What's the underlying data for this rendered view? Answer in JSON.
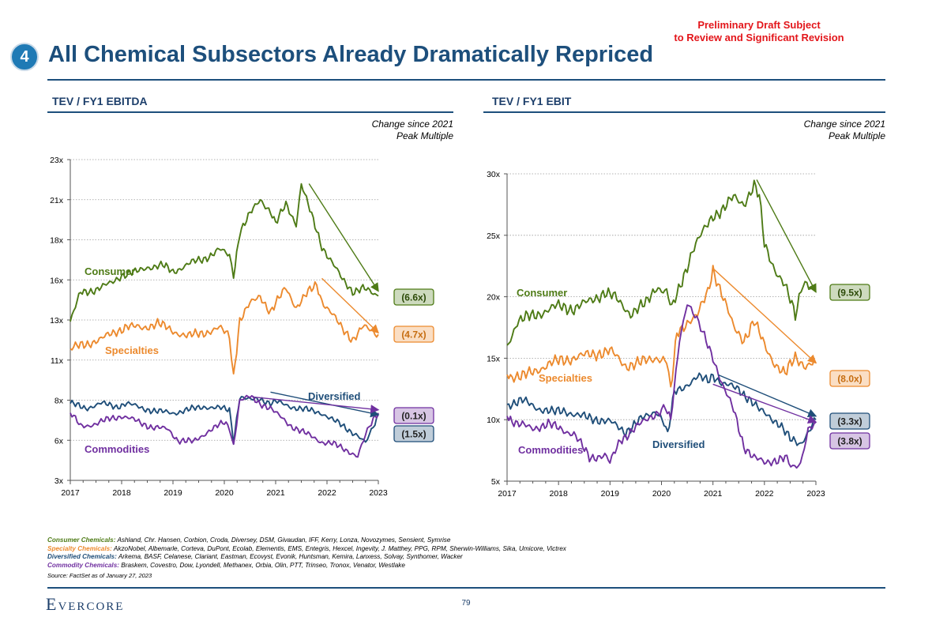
{
  "draft_notice": [
    "Preliminary Draft Subject",
    "to Review and Significant Revision"
  ],
  "section_number": "4",
  "title": "All Chemical Subsectors Already Dramatically Repriced",
  "colors": {
    "consumer": "#4e7b16",
    "specialties": "#ec8a2e",
    "diversified": "#1f4e79",
    "commodities": "#7030a0",
    "title": "#1d4f7c",
    "draft": "#e3161b"
  },
  "chart_data": [
    {
      "type": "line",
      "title": "TEV / FY1 EBITDA",
      "note": [
        "Change since 2021",
        "Peak Multiple"
      ],
      "x_ticks": [
        "2017",
        "2018",
        "2019",
        "2020",
        "2021",
        "2022",
        "2023"
      ],
      "y_ticks": [
        "3x",
        "6x",
        "8x",
        "11x",
        "13x",
        "16x",
        "18x",
        "21x",
        "23x"
      ],
      "ylim": [
        3,
        23
      ],
      "series": [
        {
          "name": "Consumer",
          "key": "consumer",
          "label": "Consumer",
          "change": "(6.6x)",
          "x": [
            2017.0,
            2017.2,
            2017.5,
            2017.8,
            2018.0,
            2018.3,
            2018.5,
            2018.8,
            2019.0,
            2019.3,
            2019.6,
            2019.9,
            2020.1,
            2020.18,
            2020.3,
            2020.5,
            2020.7,
            2020.9,
            2021.0,
            2021.2,
            2021.4,
            2021.5,
            2021.7,
            2021.9,
            2022.1,
            2022.3,
            2022.5,
            2022.7,
            2022.9,
            2023.0
          ],
          "y": [
            12.9,
            14.7,
            14.9,
            15.3,
            15.8,
            16.0,
            16.3,
            16.4,
            16.0,
            16.5,
            16.8,
            17.4,
            17.0,
            15.8,
            18.5,
            19.6,
            20.5,
            19.8,
            19.0,
            20.2,
            19.0,
            21.5,
            19.5,
            17.6,
            16.6,
            15.5,
            14.8,
            15.0,
            14.6,
            14.5
          ]
        },
        {
          "name": "Specialties",
          "key": "specialties",
          "label": "Specialties",
          "change": "(4.7x)",
          "x": [
            2017.0,
            2017.3,
            2017.6,
            2017.9,
            2018.1,
            2018.4,
            2018.7,
            2019.0,
            2019.3,
            2019.6,
            2019.9,
            2020.1,
            2020.18,
            2020.3,
            2020.5,
            2020.7,
            2020.9,
            2021.0,
            2021.2,
            2021.4,
            2021.6,
            2021.8,
            2021.9,
            2022.1,
            2022.3,
            2022.5,
            2022.7,
            2022.9,
            2023.0
          ],
          "y": [
            11.2,
            11.5,
            11.8,
            12.3,
            12.6,
            12.5,
            12.8,
            12.3,
            12.0,
            12.2,
            12.5,
            12.0,
            9.5,
            13.0,
            14.0,
            14.5,
            13.5,
            14.0,
            15.0,
            13.8,
            14.6,
            15.2,
            14.2,
            13.4,
            12.4,
            11.8,
            12.6,
            12.2,
            12.1
          ]
        },
        {
          "name": "Diversified",
          "key": "diversified",
          "label": "Diversified",
          "change": "(1.5x)",
          "x": [
            2017.0,
            2017.3,
            2017.6,
            2017.9,
            2018.1,
            2018.4,
            2018.7,
            2019.0,
            2019.3,
            2019.6,
            2019.9,
            2020.1,
            2020.18,
            2020.3,
            2020.5,
            2020.7,
            2020.9,
            2021.0,
            2021.3,
            2021.6,
            2021.9,
            2022.1,
            2022.3,
            2022.5,
            2022.6,
            2022.75,
            2022.9,
            2023.0
          ],
          "y": [
            7.8,
            7.5,
            7.8,
            7.6,
            7.8,
            7.5,
            7.3,
            7.2,
            7.4,
            7.6,
            7.5,
            7.4,
            5.5,
            8.2,
            8.0,
            8.1,
            7.8,
            7.9,
            7.6,
            7.4,
            7.2,
            6.8,
            6.4,
            6.0,
            5.8,
            5.3,
            6.3,
            7.1
          ]
        },
        {
          "name": "Commodities",
          "key": "commodities",
          "label": "Commodities",
          "change": "(0.1x)",
          "x": [
            2017.0,
            2017.2,
            2017.5,
            2017.8,
            2018.0,
            2018.3,
            2018.6,
            2018.9,
            2019.1,
            2019.4,
            2019.7,
            2020.0,
            2020.1,
            2020.18,
            2020.3,
            2020.5,
            2020.7,
            2020.9,
            2021.0,
            2021.3,
            2021.6,
            2021.9,
            2022.1,
            2022.3,
            2022.5,
            2022.6,
            2022.75,
            2022.9,
            2023.0
          ],
          "y": [
            7.2,
            6.4,
            6.5,
            6.9,
            7.0,
            6.7,
            6.3,
            6.2,
            5.5,
            5.4,
            6.1,
            6.6,
            6.3,
            5.2,
            8.0,
            8.2,
            7.8,
            7.5,
            7.2,
            6.4,
            5.9,
            5.4,
            5.3,
            5.0,
            4.7,
            4.5,
            5.8,
            6.8,
            7.2
          ]
        }
      ]
    },
    {
      "type": "line",
      "title": "TEV / FY1 EBIT",
      "note": [
        "Change since 2021",
        "Peak Multiple"
      ],
      "x_ticks": [
        "2017",
        "2018",
        "2019",
        "2020",
        "2021",
        "2022",
        "2023"
      ],
      "y_ticks": [
        "5x",
        "10x",
        "15x",
        "20x",
        "25x",
        "30x"
      ],
      "ylim": [
        5,
        31
      ],
      "series": [
        {
          "name": "Consumer",
          "key": "consumer",
          "label": "Consumer",
          "change": "(9.5x)",
          "x": [
            2017.0,
            2017.2,
            2017.5,
            2017.8,
            2018.0,
            2018.3,
            2018.6,
            2018.9,
            2019.1,
            2019.4,
            2019.7,
            2019.9,
            2020.1,
            2020.2,
            2020.4,
            2020.6,
            2020.8,
            2021.0,
            2021.2,
            2021.4,
            2021.6,
            2021.8,
            2021.9,
            2022.0,
            2022.2,
            2022.4,
            2022.6,
            2022.75,
            2022.9,
            2023.0
          ],
          "y": [
            16.5,
            18.5,
            19.0,
            19.5,
            19.8,
            19.6,
            20.2,
            21.0,
            20.5,
            19.2,
            20.0,
            21.5,
            21.0,
            19.5,
            22.0,
            24.5,
            26.0,
            27.5,
            28.0,
            29.0,
            28.5,
            30.0,
            29.0,
            25.0,
            23.0,
            21.5,
            19.0,
            22.0,
            21.5,
            21.0
          ]
        },
        {
          "name": "Specialties",
          "key": "specialties",
          "label": "Specialties",
          "change": "(8.0x)",
          "x": [
            2017.0,
            2017.3,
            2017.6,
            2017.9,
            2018.1,
            2018.4,
            2018.7,
            2019.0,
            2019.3,
            2019.6,
            2019.9,
            2020.1,
            2020.18,
            2020.3,
            2020.5,
            2020.7,
            2020.9,
            2021.0,
            2021.2,
            2021.4,
            2021.6,
            2021.8,
            2022.0,
            2022.2,
            2022.4,
            2022.6,
            2022.8,
            2023.0
          ],
          "y": [
            14.0,
            13.8,
            14.5,
            15.0,
            15.3,
            15.5,
            15.8,
            16.0,
            14.8,
            15.0,
            15.5,
            15.2,
            12.5,
            17.5,
            18.5,
            19.0,
            21.0,
            23.0,
            20.5,
            18.0,
            17.0,
            18.5,
            16.5,
            15.0,
            14.0,
            15.5,
            14.8,
            15.0
          ]
        },
        {
          "name": "Diversified",
          "key": "diversified",
          "label": "Diversified",
          "change": "(3.3x)",
          "x": [
            2017.0,
            2017.3,
            2017.6,
            2017.9,
            2018.1,
            2018.4,
            2018.7,
            2019.0,
            2019.3,
            2019.6,
            2019.9,
            2020.05,
            2020.12,
            2020.25,
            2020.5,
            2020.7,
            2020.9,
            2021.0,
            2021.2,
            2021.5,
            2021.7,
            2021.9,
            2022.1,
            2022.3,
            2022.5,
            2022.7,
            2022.9,
            2023.0
          ],
          "y": [
            11.5,
            11.8,
            11.2,
            10.8,
            11.0,
            10.5,
            10.3,
            10.0,
            9.2,
            10.2,
            11.0,
            10.0,
            8.8,
            12.5,
            13.2,
            13.8,
            13.5,
            14.0,
            13.2,
            12.8,
            12.0,
            11.0,
            10.5,
            9.8,
            8.5,
            8.2,
            9.5,
            10.2
          ]
        },
        {
          "name": "Commodities",
          "key": "commodities",
          "label": "Commodities",
          "change": "(3.8x)",
          "x": [
            2017.0,
            2017.2,
            2017.5,
            2017.8,
            2018.0,
            2018.3,
            2018.6,
            2018.9,
            2019.0,
            2019.2,
            2019.5,
            2019.8,
            2020.0,
            2020.08,
            2020.18,
            2020.35,
            2020.5,
            2020.65,
            2020.8,
            2021.0,
            2021.2,
            2021.4,
            2021.6,
            2021.8,
            2022.0,
            2022.2,
            2022.4,
            2022.55,
            2022.7,
            2022.85,
            2023.0
          ],
          "y": [
            10.5,
            9.8,
            9.5,
            9.8,
            9.5,
            9.0,
            7.0,
            7.2,
            6.5,
            8.5,
            9.5,
            10.5,
            11.0,
            11.2,
            10.0,
            17.0,
            20.2,
            19.0,
            17.5,
            15.5,
            13.0,
            11.0,
            8.0,
            7.0,
            6.5,
            6.8,
            7.0,
            6.0,
            6.5,
            9.5,
            10.0
          ]
        }
      ]
    }
  ],
  "footnotes": [
    {
      "key": "consumer",
      "label": "Consumer Chemicals:",
      "text": "Ashland, Chr. Hansen, Corbion, Croda, Diversey, DSM, Givaudan, IFF, Kerry, Lonza, Novozymes, Sensient, Symrise"
    },
    {
      "key": "specialties",
      "label": "Specialty Chemicals:",
      "text": "AkzoNobel, Albemarle, Corteva, DuPont, Ecolab, Elementis, EMS, Entegris, Hexcel, Ingevity, J. Matthey, PPG, RPM, Sherwin-Williams, Sika, Umicore, Victrex"
    },
    {
      "key": "diversified",
      "label": "Diversified Chemicals:",
      "text": "Arkema, BASF, Celanese, Clariant, Eastman, Ecovyst, Evonik, Huntsman, Kemira, Lanxess, Solvay, Synthomer, Wacker"
    },
    {
      "key": "commodities",
      "label": "Commodity Chemicals:",
      "text": "Braskem, Covestro, Dow, Lyondell, Methanex, Orbia, Olin, PTT, Trinseo, Tronox, Venator, Westlake"
    }
  ],
  "source": "Source: FactSet as of January 27, 2023",
  "logo": "Evercore",
  "page_number": "79"
}
